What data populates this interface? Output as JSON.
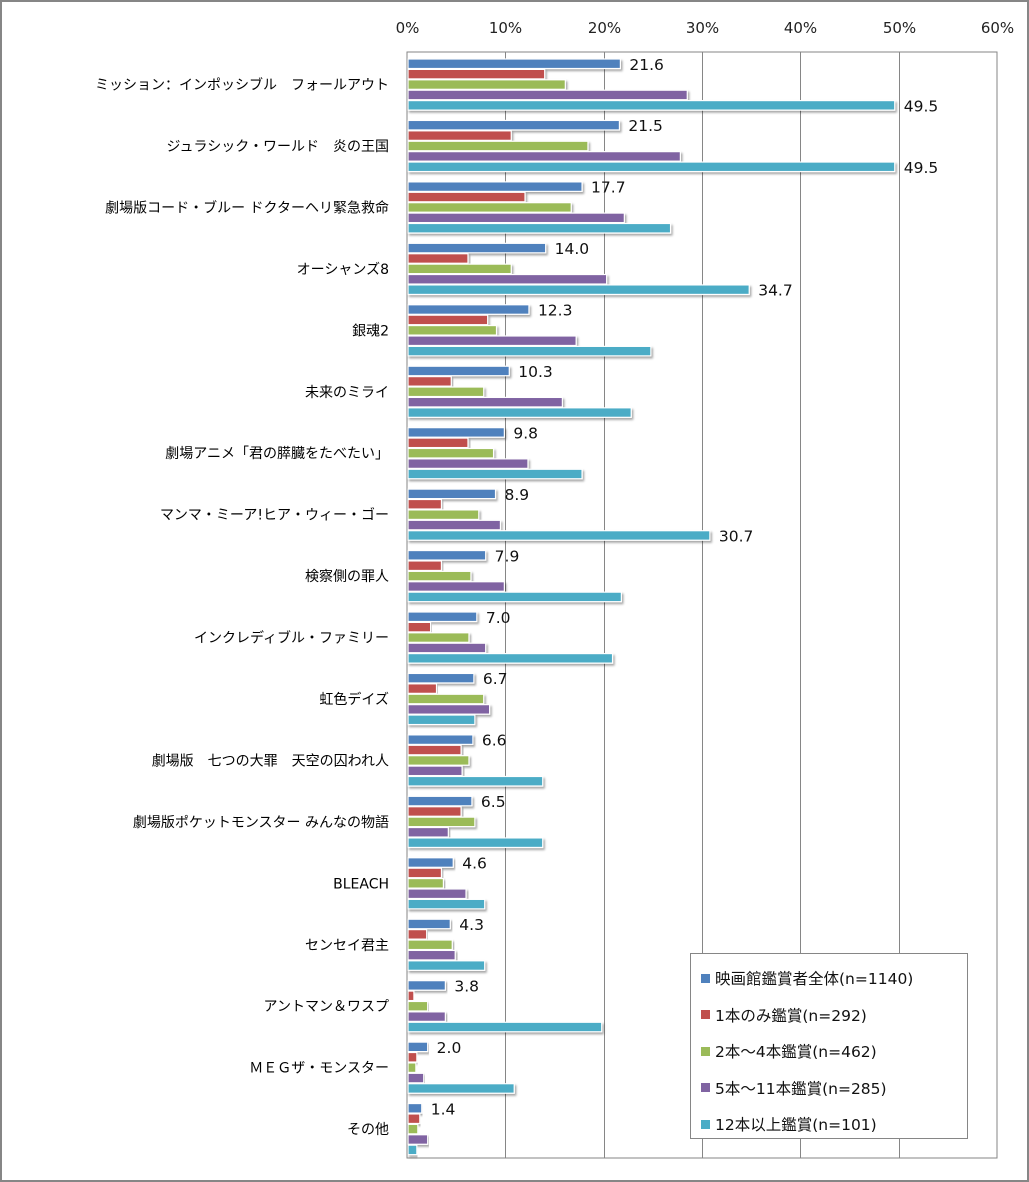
{
  "chart_data": {
    "type": "bar",
    "orientation": "horizontal",
    "title": "",
    "xlabel": "",
    "ylabel": "",
    "xlim": [
      0,
      60
    ],
    "x_ticks": [
      "0%",
      "10%",
      "20%",
      "30%",
      "40%",
      "50%",
      "60%"
    ],
    "x_axis_position": "top",
    "grid": true,
    "legend_position": "bottom-right",
    "categories": [
      "ミッション：インポッシブル　フォールアウト",
      "ジュラシック・ワールド　炎の王国",
      "劇場版コード・ブルー ドクターヘリ緊急救命",
      "オーシャンズ8",
      "銀魂2",
      "未来のミライ",
      "劇場アニメ「君の膵臓をたべたい」",
      "マンマ・ミーア!ヒア・ウィー・ゴー",
      "検察側の罪人",
      "インクレディブル・ファミリー",
      "虹色デイズ",
      "劇場版　七つの大罪　天空の囚われ人",
      "劇場版ポケットモンスター みんなの物語",
      "BLEACH",
      "センセイ君主",
      "アントマン＆ワスプ",
      "ＭＥＧザ・モンスター",
      "その他"
    ],
    "series": [
      {
        "name": "映画館鑑賞者全体(n=1140)",
        "color": "#4f81bd",
        "values": [
          21.6,
          21.5,
          17.7,
          14.0,
          12.3,
          10.3,
          9.8,
          8.9,
          7.9,
          7.0,
          6.7,
          6.6,
          6.5,
          4.6,
          4.3,
          3.8,
          2.0,
          1.4
        ],
        "labeled": true
      },
      {
        "name": "1本のみ鑑賞(n=292)",
        "color": "#c0504d",
        "values": [
          13.9,
          10.5,
          11.9,
          6.1,
          8.1,
          4.4,
          6.1,
          3.4,
          3.4,
          2.3,
          2.9,
          5.4,
          5.4,
          3.4,
          1.9,
          0.6,
          0.9,
          1.2
        ],
        "labeled": false
      },
      {
        "name": "2本～4本鑑賞(n=462)",
        "color": "#9bbb59",
        "values": [
          16.0,
          18.3,
          16.6,
          10.5,
          9.0,
          7.7,
          8.7,
          7.2,
          6.4,
          6.2,
          7.7,
          6.2,
          6.8,
          3.6,
          4.5,
          2.0,
          0.8,
          1.0
        ],
        "labeled": false
      },
      {
        "name": "5本～11本鑑賞(n=285)",
        "color": "#8064a2",
        "values": [
          28.4,
          27.7,
          22.0,
          20.2,
          17.1,
          15.7,
          12.2,
          9.4,
          9.8,
          7.9,
          8.3,
          5.5,
          4.1,
          5.9,
          4.8,
          3.8,
          1.6,
          2.0
        ],
        "labeled": false
      },
      {
        "name": "12本以上鑑賞(n=101)",
        "color": "#4bacc6",
        "values": [
          49.5,
          49.5,
          26.7,
          34.7,
          24.7,
          22.7,
          17.7,
          30.7,
          21.7,
          20.8,
          6.8,
          13.7,
          13.7,
          7.8,
          7.8,
          19.7,
          10.8,
          0.9
        ],
        "labeled_indices": [
          0,
          1,
          3,
          7
        ]
      }
    ]
  },
  "legend": {
    "items": [
      {
        "label": "映画館鑑賞者全体(n=1140)",
        "color": "#4f81bd"
      },
      {
        "label": "1本のみ鑑賞(n=292)",
        "color": "#c0504d"
      },
      {
        "label": "2本～4本鑑賞(n=462)",
        "color": "#9bbb59"
      },
      {
        "label": "5本～11本鑑賞(n=285)",
        "color": "#8064a2"
      },
      {
        "label": "12本以上鑑賞(n=101)",
        "color": "#4bacc6"
      }
    ]
  }
}
